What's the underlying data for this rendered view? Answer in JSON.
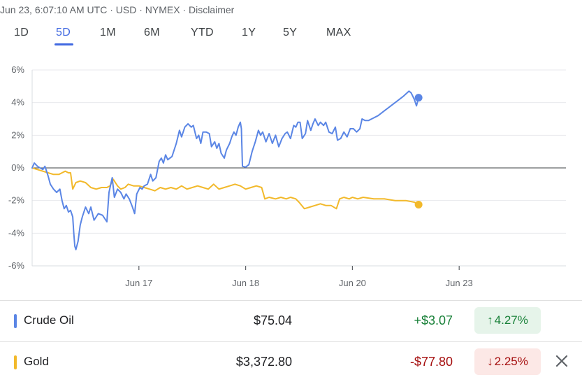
{
  "header": {
    "text": "Jun 23, 6:07:10 AM UTC · USD · NYMEX · Disclaimer"
  },
  "tabs": [
    {
      "label": "1D",
      "active": false
    },
    {
      "label": "5D",
      "active": true
    },
    {
      "label": "1M",
      "active": false
    },
    {
      "label": "6M",
      "active": false
    },
    {
      "label": "YTD",
      "active": false
    },
    {
      "label": "1Y",
      "active": false
    },
    {
      "label": "5Y",
      "active": false
    },
    {
      "label": "MAX",
      "active": false
    }
  ],
  "chart_data": {
    "type": "line",
    "y_ticks": [
      "6%",
      "4%",
      "2%",
      "0%",
      "-2%",
      "-4%",
      "-6%"
    ],
    "y_tick_values": [
      6,
      4,
      2,
      0,
      -2,
      -4,
      -6
    ],
    "ylim": [
      -6,
      6
    ],
    "x_tick_labels": [
      "Jun 17",
      "Jun 18",
      "Jun 20",
      "Jun 23"
    ],
    "x_tick_values": [
      1,
      2,
      3,
      4
    ],
    "xlim": [
      0,
      5
    ],
    "baseline": 0,
    "series": [
      {
        "name": "Crude Oil",
        "color": "#5b86e5",
        "end_marker": true,
        "points": [
          [
            0.0,
            0.0
          ],
          [
            0.02,
            0.3
          ],
          [
            0.05,
            0.1
          ],
          [
            0.1,
            -0.1
          ],
          [
            0.12,
            0.1
          ],
          [
            0.15,
            -0.5
          ],
          [
            0.17,
            -1.0
          ],
          [
            0.2,
            -1.3
          ],
          [
            0.23,
            -1.5
          ],
          [
            0.26,
            -1.3
          ],
          [
            0.28,
            -2.0
          ],
          [
            0.3,
            -2.5
          ],
          [
            0.32,
            -2.3
          ],
          [
            0.34,
            -2.7
          ],
          [
            0.36,
            -2.6
          ],
          [
            0.38,
            -3.0
          ],
          [
            0.39,
            -4.0
          ],
          [
            0.4,
            -4.8
          ],
          [
            0.41,
            -5.0
          ],
          [
            0.43,
            -4.5
          ],
          [
            0.45,
            -3.5
          ],
          [
            0.47,
            -3.0
          ],
          [
            0.5,
            -2.4
          ],
          [
            0.53,
            -2.8
          ],
          [
            0.55,
            -2.4
          ],
          [
            0.58,
            -3.2
          ],
          [
            0.6,
            -3.0
          ],
          [
            0.62,
            -2.8
          ],
          [
            0.66,
            -2.9
          ],
          [
            0.7,
            -3.3
          ],
          [
            0.72,
            -1.5
          ],
          [
            0.75,
            -0.6
          ],
          [
            0.77,
            -1.8
          ],
          [
            0.8,
            -1.3
          ],
          [
            0.83,
            -1.5
          ],
          [
            0.86,
            -1.9
          ],
          [
            0.88,
            -1.6
          ],
          [
            0.91,
            -1.9
          ],
          [
            0.94,
            -2.4
          ],
          [
            0.96,
            -2.8
          ],
          [
            0.98,
            -1.6
          ],
          [
            1.01,
            -1.2
          ],
          [
            1.03,
            -1.3
          ],
          [
            1.05,
            -1.1
          ],
          [
            1.08,
            -1.0
          ],
          [
            1.11,
            -0.4
          ],
          [
            1.13,
            -0.8
          ],
          [
            1.16,
            -0.6
          ],
          [
            1.19,
            0.4
          ],
          [
            1.21,
            0.6
          ],
          [
            1.23,
            0.3
          ],
          [
            1.25,
            0.8
          ],
          [
            1.27,
            0.5
          ],
          [
            1.31,
            0.7
          ],
          [
            1.35,
            1.5
          ],
          [
            1.38,
            2.3
          ],
          [
            1.4,
            1.9
          ],
          [
            1.43,
            2.5
          ],
          [
            1.46,
            2.7
          ],
          [
            1.49,
            2.5
          ],
          [
            1.51,
            2.6
          ],
          [
            1.54,
            1.8
          ],
          [
            1.56,
            2.0
          ],
          [
            1.58,
            1.5
          ],
          [
            1.6,
            2.2
          ],
          [
            1.63,
            2.2
          ],
          [
            1.66,
            2.1
          ],
          [
            1.68,
            1.3
          ],
          [
            1.71,
            1.6
          ],
          [
            1.73,
            1.2
          ],
          [
            1.75,
            1.5
          ],
          [
            1.77,
            0.9
          ],
          [
            1.8,
            0.6
          ],
          [
            1.82,
            1.1
          ],
          [
            1.85,
            1.5
          ],
          [
            1.87,
            1.9
          ],
          [
            1.89,
            2.2
          ],
          [
            1.91,
            2.0
          ],
          [
            1.93,
            2.5
          ],
          [
            1.95,
            2.8
          ],
          [
            1.96,
            2.4
          ],
          [
            1.97,
            0.1
          ],
          [
            2.0,
            0.05
          ],
          [
            2.03,
            0.2
          ],
          [
            2.06,
            1.0
          ],
          [
            2.09,
            1.6
          ],
          [
            2.12,
            2.3
          ],
          [
            2.14,
            2.0
          ],
          [
            2.16,
            2.2
          ],
          [
            2.19,
            1.6
          ],
          [
            2.22,
            2.1
          ],
          [
            2.25,
            1.5
          ],
          [
            2.28,
            2.0
          ],
          [
            2.31,
            1.3
          ],
          [
            2.34,
            1.8
          ],
          [
            2.37,
            2.1
          ],
          [
            2.39,
            2.2
          ],
          [
            2.42,
            1.8
          ],
          [
            2.45,
            2.6
          ],
          [
            2.47,
            2.5
          ],
          [
            2.49,
            2.8
          ],
          [
            2.51,
            2.8
          ],
          [
            2.53,
            1.8
          ],
          [
            2.56,
            2.1
          ],
          [
            2.58,
            2.9
          ],
          [
            2.61,
            2.3
          ],
          [
            2.63,
            2.7
          ],
          [
            2.65,
            3.0
          ],
          [
            2.68,
            2.6
          ],
          [
            2.7,
            2.8
          ],
          [
            2.73,
            2.6
          ],
          [
            2.75,
            2.8
          ],
          [
            2.78,
            2.2
          ],
          [
            2.81,
            2.1
          ],
          [
            2.84,
            2.5
          ],
          [
            2.86,
            1.7
          ],
          [
            2.89,
            1.8
          ],
          [
            2.92,
            2.2
          ],
          [
            2.95,
            1.9
          ],
          [
            2.98,
            2.4
          ],
          [
            3.01,
            2.4
          ],
          [
            3.04,
            2.2
          ],
          [
            3.07,
            2.4
          ],
          [
            3.09,
            3.0
          ],
          [
            3.12,
            2.9
          ],
          [
            3.15,
            2.9
          ],
          [
            3.18,
            3.0
          ],
          [
            3.24,
            3.2
          ],
          [
            3.3,
            3.5
          ],
          [
            3.36,
            3.8
          ],
          [
            3.42,
            4.1
          ],
          [
            3.48,
            4.4
          ],
          [
            3.53,
            4.7
          ],
          [
            3.55,
            4.6
          ],
          [
            3.58,
            4.2
          ],
          [
            3.6,
            3.8
          ],
          [
            3.62,
            4.3
          ]
        ]
      },
      {
        "name": "Gold",
        "color": "#f2b92b",
        "end_marker": true,
        "points": [
          [
            0.0,
            0.0
          ],
          [
            0.05,
            -0.1
          ],
          [
            0.1,
            -0.2
          ],
          [
            0.15,
            -0.3
          ],
          [
            0.2,
            -0.4
          ],
          [
            0.25,
            -0.4
          ],
          [
            0.28,
            -0.3
          ],
          [
            0.31,
            -0.2
          ],
          [
            0.34,
            -0.3
          ],
          [
            0.36,
            -0.3
          ],
          [
            0.38,
            -1.3
          ],
          [
            0.41,
            -0.9
          ],
          [
            0.45,
            -0.8
          ],
          [
            0.5,
            -0.9
          ],
          [
            0.55,
            -1.2
          ],
          [
            0.6,
            -1.3
          ],
          [
            0.65,
            -1.2
          ],
          [
            0.7,
            -1.2
          ],
          [
            0.73,
            -1.1
          ],
          [
            0.76,
            -0.7
          ],
          [
            0.8,
            -1.1
          ],
          [
            0.83,
            -1.3
          ],
          [
            0.87,
            -1.2
          ],
          [
            0.9,
            -1.0
          ],
          [
            0.95,
            -1.1
          ],
          [
            1.0,
            -1.1
          ],
          [
            1.05,
            -1.2
          ],
          [
            1.1,
            -1.3
          ],
          [
            1.15,
            -1.4
          ],
          [
            1.2,
            -1.2
          ],
          [
            1.25,
            -1.3
          ],
          [
            1.3,
            -1.2
          ],
          [
            1.35,
            -1.3
          ],
          [
            1.4,
            -1.1
          ],
          [
            1.45,
            -1.3
          ],
          [
            1.5,
            -1.2
          ],
          [
            1.55,
            -1.1
          ],
          [
            1.6,
            -1.2
          ],
          [
            1.65,
            -1.3
          ],
          [
            1.7,
            -1.0
          ],
          [
            1.75,
            -1.3
          ],
          [
            1.8,
            -1.2
          ],
          [
            1.85,
            -1.1
          ],
          [
            1.9,
            -1.0
          ],
          [
            1.95,
            -1.1
          ],
          [
            2.0,
            -1.3
          ],
          [
            2.05,
            -1.2
          ],
          [
            2.1,
            -1.1
          ],
          [
            2.15,
            -1.2
          ],
          [
            2.18,
            -1.9
          ],
          [
            2.22,
            -1.8
          ],
          [
            2.28,
            -1.9
          ],
          [
            2.33,
            -1.8
          ],
          [
            2.38,
            -1.9
          ],
          [
            2.42,
            -1.8
          ],
          [
            2.47,
            -1.9
          ],
          [
            2.5,
            -2.1
          ],
          [
            2.55,
            -2.5
          ],
          [
            2.6,
            -2.4
          ],
          [
            2.65,
            -2.3
          ],
          [
            2.7,
            -2.2
          ],
          [
            2.75,
            -2.3
          ],
          [
            2.8,
            -2.3
          ],
          [
            2.85,
            -2.5
          ],
          [
            2.88,
            -1.9
          ],
          [
            2.92,
            -1.8
          ],
          [
            2.97,
            -1.9
          ],
          [
            3.0,
            -1.8
          ],
          [
            3.05,
            -1.9
          ],
          [
            3.1,
            -1.8
          ],
          [
            3.2,
            -1.9
          ],
          [
            3.3,
            -1.9
          ],
          [
            3.4,
            -2.0
          ],
          [
            3.5,
            -2.0
          ],
          [
            3.58,
            -2.1
          ],
          [
            3.62,
            -2.25
          ]
        ]
      }
    ]
  },
  "rows": [
    {
      "name": "Crude Oil",
      "price": "$75.04",
      "change": "+$3.07",
      "change_color": "#188038",
      "arrow": "↑",
      "percent": "4.27%",
      "pill_bg": "#e6f4ea",
      "pill_color": "#188038",
      "swatch": "#5b86e5"
    },
    {
      "name": "Gold",
      "price": "$3,372.80",
      "change": "-$77.80",
      "change_color": "#a50e0e",
      "arrow": "↓",
      "percent": "2.25%",
      "pill_bg": "#fce8e6",
      "pill_color": "#a50e0e",
      "swatch": "#f2b92b",
      "closable": true
    }
  ]
}
